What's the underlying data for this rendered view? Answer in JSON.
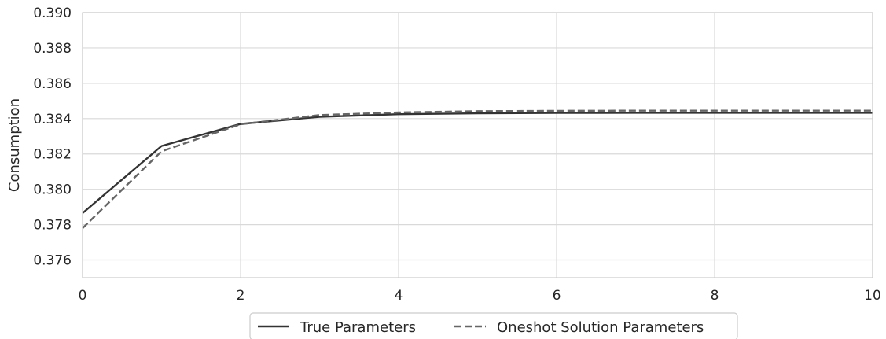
{
  "chart_data": {
    "type": "line",
    "title": "",
    "xlabel": "",
    "ylabel": "Consumption",
    "xlim": [
      0,
      10
    ],
    "ylim": [
      0.375,
      0.39
    ],
    "xticks": [
      0,
      2,
      4,
      6,
      8,
      10
    ],
    "xtick_labels": [
      "0",
      "2",
      "4",
      "6",
      "8",
      "10"
    ],
    "yticks": [
      0.376,
      0.378,
      0.38,
      0.382,
      0.384,
      0.386,
      0.388,
      0.39
    ],
    "ytick_labels": [
      "0.376",
      "0.378",
      "0.380",
      "0.382",
      "0.384",
      "0.386",
      "0.388",
      "0.390"
    ],
    "grid": true,
    "legend_position": "bottom-center",
    "x": [
      0,
      1,
      2,
      3,
      4,
      5,
      6,
      7,
      8,
      9,
      10
    ],
    "series": [
      {
        "name": "True Parameters",
        "style": "solid",
        "color": "#333333",
        "values": [
          0.37865,
          0.38245,
          0.3837,
          0.3841,
          0.38425,
          0.3843,
          0.38432,
          0.38433,
          0.38433,
          0.38433,
          0.38433
        ]
      },
      {
        "name": "Oneshot Solution Parameters",
        "style": "dashed",
        "color": "#666666",
        "values": [
          0.3778,
          0.38215,
          0.38368,
          0.3842,
          0.38435,
          0.38442,
          0.38444,
          0.38445,
          0.38445,
          0.38445,
          0.38445
        ]
      }
    ]
  }
}
